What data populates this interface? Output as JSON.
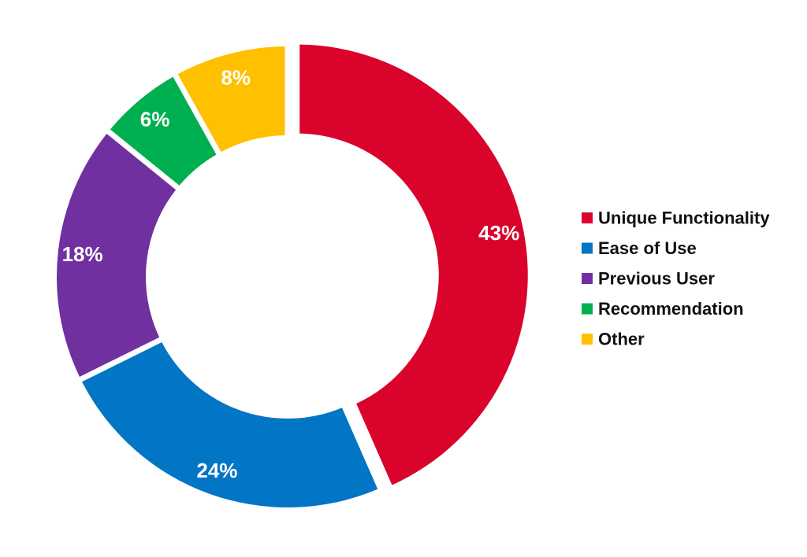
{
  "chart_data": {
    "type": "pie",
    "style": "donut",
    "categories": [
      "Unique Functionality",
      "Ease of Use",
      "Previous User",
      "Recommendation",
      "Other"
    ],
    "values": [
      43,
      24,
      18,
      6,
      8
    ],
    "labels": [
      "43%",
      "24%",
      "18%",
      "6%",
      "8%"
    ],
    "colors": [
      "#D9032C",
      "#0275C4",
      "#7030A0",
      "#00B050",
      "#FFC000"
    ],
    "legend_position": "right",
    "start_angle_deg": 90,
    "direction": "clockwise",
    "exploded_slice": "Unique Functionality"
  }
}
